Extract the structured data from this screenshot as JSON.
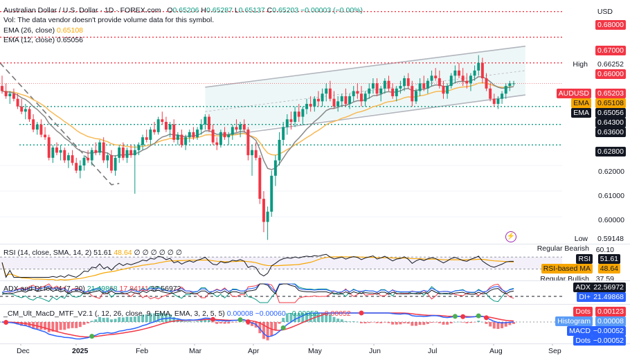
{
  "header": {
    "symbol": "Australian Dollar / U.S. Dollar · 1D · FOREX.com",
    "o_label": "O",
    "o": "0.65206",
    "h_label": "H",
    "h": "0.65287",
    "l_label": "L",
    "l": "0.65137",
    "c_label": "C",
    "c": "0.65203",
    "change": "−0.00003 (−0.00%)",
    "vol_note": "Vol: The data vendor doesn't provide volume data for this symbol.",
    "ema26_label": "EMA (26, close)",
    "ema26_val": "0.65108",
    "ema12_label": "EMA (12, close)",
    "ema12_val": "0.65056"
  },
  "currency": "USD",
  "price_axis": {
    "levels": [
      {
        "value": "0.68000",
        "style": "red"
      },
      {
        "value": "0.67000",
        "style": "red"
      },
      {
        "value": "0.66000",
        "style": "red"
      },
      {
        "value": "0.64300",
        "style": "green"
      },
      {
        "value": "0.63600",
        "style": "green"
      },
      {
        "value": "0.62800",
        "style": "green"
      }
    ],
    "ticks": [
      "0.62000",
      "0.61000",
      "0.60000"
    ],
    "high_label": "High",
    "high": "0.66252",
    "low_label": "Low",
    "low": "0.59148",
    "audusd_label": "AUDUSD",
    "audusd": "0.65203",
    "ema_label": "EMA",
    "ema_a": "0.65108",
    "ema_b": "0.65056"
  },
  "rsi": {
    "legend": "RSI (14, close, SMA, 14, 2)",
    "rsi": "51.61",
    "ma": "48.64",
    "extra": "∅ ∅ ∅ ∅ ∅ ∅",
    "bearish_label": "Regular Bearish",
    "bearish": "60.10",
    "rsi_label": "RSI",
    "ma_label": "RSI-based MA",
    "bullish_label": "Regular Bullish",
    "bullish": "37.59"
  },
  "adx": {
    "legend": "ADX and DI for v4 (7, 20)",
    "di_plus": "21.49868",
    "di_minus": "17.84111",
    "adx": "22.56972",
    "adx_label": "ADX",
    "di_label": "DI+"
  },
  "macd": {
    "legend": "_CM_Ult_MacD_MTF_V2.1 (, 12, 26, close, 9, EMA, EMA, 3, 2, 5, 5)",
    "v1": "0.00008",
    "v2": "−0.00060",
    "v3": "−0.00052",
    "v4": "−0.00052",
    "dots_label": "Dots",
    "dots_a": "0.00123",
    "hist_label": "Histogram",
    "hist": "0.00008",
    "macd_label": "MACD",
    "macd_val": "−0.00052",
    "dots_b": "−0.00052"
  },
  "x_axis": [
    "Dec",
    "2025",
    "Feb",
    "Mar",
    "Apr",
    "May",
    "Jun",
    "Jul",
    "Aug",
    "Sep"
  ],
  "colors": {
    "up": "#089981",
    "down": "#f23645",
    "ema26": "#f7b955",
    "ema12": "#888888",
    "rsi": "#131722",
    "rsi_ma": "#f7a600",
    "adx": "#131722",
    "di_plus": "#2962ff",
    "di_minus": "#f23645"
  },
  "chart_data": {
    "type": "candlestick",
    "price_range": [
      0.5895,
      0.6845
    ],
    "candles": [
      [
        0.651,
        0.655,
        0.648,
        0.649
      ],
      [
        0.649,
        0.652,
        0.646,
        0.647
      ],
      [
        0.647,
        0.649,
        0.644,
        0.648
      ],
      [
        0.648,
        0.65,
        0.645,
        0.646
      ],
      [
        0.646,
        0.648,
        0.642,
        0.643
      ],
      [
        0.643,
        0.646,
        0.64,
        0.641
      ],
      [
        0.641,
        0.644,
        0.638,
        0.642
      ],
      [
        0.642,
        0.643,
        0.637,
        0.638
      ],
      [
        0.638,
        0.64,
        0.633,
        0.634
      ],
      [
        0.634,
        0.637,
        0.632,
        0.636
      ],
      [
        0.636,
        0.638,
        0.631,
        0.632
      ],
      [
        0.632,
        0.635,
        0.63,
        0.631
      ],
      [
        0.631,
        0.632,
        0.622,
        0.623
      ],
      [
        0.623,
        0.628,
        0.621,
        0.627
      ],
      [
        0.627,
        0.629,
        0.624,
        0.625
      ],
      [
        0.625,
        0.628,
        0.622,
        0.626
      ],
      [
        0.626,
        0.627,
        0.621,
        0.622
      ],
      [
        0.622,
        0.625,
        0.619,
        0.624
      ],
      [
        0.624,
        0.626,
        0.62,
        0.621
      ],
      [
        0.621,
        0.623,
        0.617,
        0.618
      ],
      [
        0.618,
        0.622,
        0.615,
        0.62
      ],
      [
        0.62,
        0.624,
        0.618,
        0.623
      ],
      [
        0.623,
        0.626,
        0.621,
        0.622
      ],
      [
        0.622,
        0.627,
        0.62,
        0.626
      ],
      [
        0.626,
        0.629,
        0.624,
        0.625
      ],
      [
        0.625,
        0.63,
        0.624,
        0.629
      ],
      [
        0.629,
        0.631,
        0.621,
        0.622
      ],
      [
        0.622,
        0.625,
        0.619,
        0.624
      ],
      [
        0.624,
        0.626,
        0.617,
        0.618
      ],
      [
        0.618,
        0.624,
        0.616,
        0.623
      ],
      [
        0.623,
        0.628,
        0.621,
        0.627
      ],
      [
        0.627,
        0.629,
        0.622,
        0.623
      ],
      [
        0.623,
        0.627,
        0.621,
        0.626
      ],
      [
        0.626,
        0.628,
        0.623,
        0.624
      ],
      [
        0.624,
        0.628,
        0.609,
        0.626
      ],
      [
        0.626,
        0.629,
        0.624,
        0.628
      ],
      [
        0.628,
        0.632,
        0.626,
        0.631
      ],
      [
        0.631,
        0.634,
        0.629,
        0.63
      ],
      [
        0.63,
        0.635,
        0.628,
        0.634
      ],
      [
        0.634,
        0.637,
        0.632,
        0.633
      ],
      [
        0.633,
        0.639,
        0.632,
        0.638
      ],
      [
        0.638,
        0.641,
        0.636,
        0.637
      ],
      [
        0.637,
        0.639,
        0.633,
        0.634
      ],
      [
        0.634,
        0.637,
        0.631,
        0.636
      ],
      [
        0.636,
        0.638,
        0.629,
        0.63
      ],
      [
        0.63,
        0.633,
        0.628,
        0.632
      ],
      [
        0.632,
        0.634,
        0.627,
        0.628
      ],
      [
        0.628,
        0.632,
        0.626,
        0.631
      ],
      [
        0.631,
        0.634,
        0.629,
        0.633
      ],
      [
        0.633,
        0.635,
        0.63,
        0.631
      ],
      [
        0.631,
        0.635,
        0.63,
        0.634
      ],
      [
        0.634,
        0.638,
        0.632,
        0.636
      ],
      [
        0.636,
        0.64,
        0.634,
        0.639
      ],
      [
        0.639,
        0.64,
        0.633,
        0.634
      ],
      [
        0.634,
        0.636,
        0.628,
        0.629
      ],
      [
        0.629,
        0.631,
        0.626,
        0.628
      ],
      [
        0.628,
        0.634,
        0.627,
        0.633
      ],
      [
        0.633,
        0.635,
        0.63,
        0.631
      ],
      [
        0.631,
        0.633,
        0.628,
        0.632
      ],
      [
        0.632,
        0.636,
        0.63,
        0.635
      ],
      [
        0.635,
        0.638,
        0.633,
        0.634
      ],
      [
        0.634,
        0.637,
        0.631,
        0.636
      ],
      [
        0.636,
        0.638,
        0.633,
        0.634
      ],
      [
        0.634,
        0.635,
        0.622,
        0.624
      ],
      [
        0.624,
        0.628,
        0.616,
        0.626
      ],
      [
        0.626,
        0.629,
        0.622,
        0.623
      ],
      [
        0.623,
        0.624,
        0.605,
        0.607
      ],
      [
        0.607,
        0.61,
        0.594,
        0.598
      ],
      [
        0.598,
        0.604,
        0.591,
        0.602
      ],
      [
        0.602,
        0.618,
        0.6,
        0.616
      ],
      [
        0.616,
        0.624,
        0.612,
        0.622
      ],
      [
        0.622,
        0.633,
        0.62,
        0.63
      ],
      [
        0.63,
        0.637,
        0.628,
        0.635
      ],
      [
        0.635,
        0.64,
        0.632,
        0.638
      ],
      [
        0.638,
        0.641,
        0.634,
        0.637
      ],
      [
        0.637,
        0.643,
        0.635,
        0.641
      ],
      [
        0.641,
        0.644,
        0.637,
        0.639
      ],
      [
        0.639,
        0.643,
        0.636,
        0.642
      ],
      [
        0.642,
        0.646,
        0.64,
        0.644
      ],
      [
        0.644,
        0.647,
        0.641,
        0.643
      ],
      [
        0.643,
        0.647,
        0.641,
        0.646
      ],
      [
        0.646,
        0.649,
        0.643,
        0.645
      ],
      [
        0.645,
        0.65,
        0.643,
        0.648
      ],
      [
        0.648,
        0.652,
        0.645,
        0.65
      ],
      [
        0.65,
        0.653,
        0.645,
        0.646
      ],
      [
        0.646,
        0.649,
        0.642,
        0.643
      ],
      [
        0.643,
        0.647,
        0.641,
        0.645
      ],
      [
        0.645,
        0.648,
        0.643,
        0.647
      ],
      [
        0.647,
        0.65,
        0.643,
        0.644
      ],
      [
        0.644,
        0.648,
        0.642,
        0.647
      ],
      [
        0.647,
        0.651,
        0.645,
        0.649
      ],
      [
        0.649,
        0.652,
        0.646,
        0.648
      ],
      [
        0.648,
        0.651,
        0.643,
        0.645
      ],
      [
        0.645,
        0.649,
        0.643,
        0.648
      ],
      [
        0.648,
        0.652,
        0.646,
        0.65
      ],
      [
        0.65,
        0.654,
        0.648,
        0.652
      ],
      [
        0.652,
        0.654,
        0.647,
        0.648
      ],
      [
        0.648,
        0.651,
        0.645,
        0.65
      ],
      [
        0.65,
        0.654,
        0.648,
        0.653
      ],
      [
        0.653,
        0.655,
        0.649,
        0.65
      ],
      [
        0.65,
        0.652,
        0.646,
        0.647
      ],
      [
        0.647,
        0.651,
        0.645,
        0.65
      ],
      [
        0.65,
        0.653,
        0.648,
        0.651
      ],
      [
        0.651,
        0.655,
        0.649,
        0.654
      ],
      [
        0.654,
        0.656,
        0.65,
        0.651
      ],
      [
        0.651,
        0.653,
        0.643,
        0.645
      ],
      [
        0.645,
        0.65,
        0.644,
        0.649
      ],
      [
        0.649,
        0.654,
        0.647,
        0.652
      ],
      [
        0.652,
        0.655,
        0.649,
        0.65
      ],
      [
        0.65,
        0.654,
        0.648,
        0.653
      ],
      [
        0.653,
        0.657,
        0.651,
        0.655
      ],
      [
        0.655,
        0.658,
        0.653,
        0.654
      ],
      [
        0.654,
        0.657,
        0.65,
        0.651
      ],
      [
        0.651,
        0.653,
        0.646,
        0.648
      ],
      [
        0.648,
        0.652,
        0.646,
        0.651
      ],
      [
        0.651,
        0.656,
        0.65,
        0.655
      ],
      [
        0.655,
        0.659,
        0.652,
        0.657
      ],
      [
        0.657,
        0.66,
        0.654,
        0.655
      ],
      [
        0.655,
        0.658,
        0.651,
        0.653
      ],
      [
        0.653,
        0.656,
        0.65,
        0.652
      ],
      [
        0.652,
        0.656,
        0.649,
        0.655
      ],
      [
        0.655,
        0.659,
        0.653,
        0.657
      ],
      [
        0.657,
        0.663,
        0.655,
        0.66
      ],
      [
        0.66,
        0.662,
        0.652,
        0.654
      ],
      [
        0.654,
        0.656,
        0.649,
        0.65
      ],
      [
        0.65,
        0.652,
        0.645,
        0.646
      ],
      [
        0.646,
        0.648,
        0.643,
        0.644
      ],
      [
        0.644,
        0.647,
        0.642,
        0.646
      ],
      [
        0.646,
        0.649,
        0.644,
        0.648
      ],
      [
        0.648,
        0.652,
        0.646,
        0.651
      ],
      [
        0.651,
        0.653,
        0.649,
        0.652
      ],
      [
        0.652,
        0.653,
        0.651,
        0.652
      ]
    ]
  }
}
